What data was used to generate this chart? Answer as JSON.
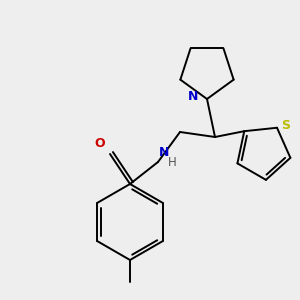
{
  "bg_color": "#eeeeee",
  "bond_color": "#000000",
  "N_color": "#0000cc",
  "O_color": "#cc0000",
  "S_color": "#bbbb00",
  "line_width": 1.4,
  "font_size": 8.5,
  "fig_w": 3.0,
  "fig_h": 3.0,
  "dpi": 100,
  "xlim": [
    0,
    300
  ],
  "ylim": [
    0,
    300
  ]
}
